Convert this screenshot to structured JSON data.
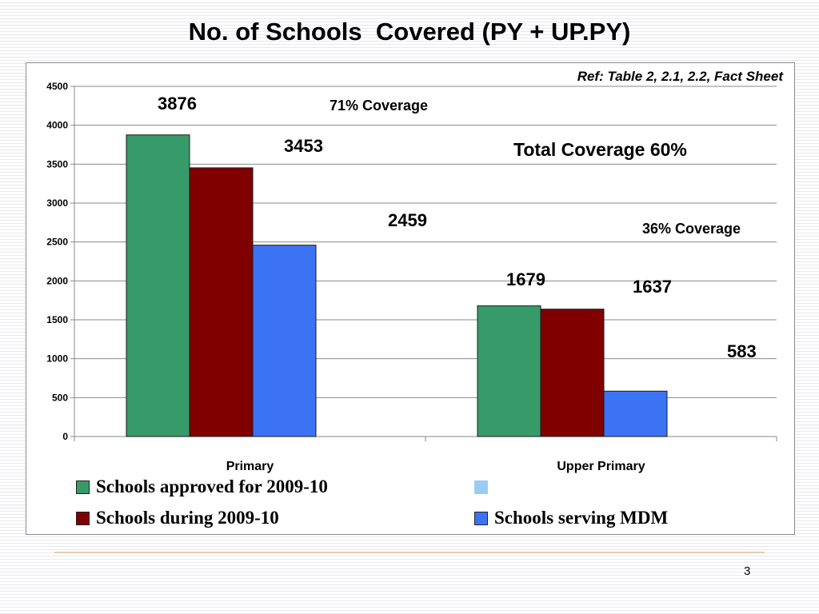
{
  "slide": {
    "title": "No. of Schools  Covered (PY + UP.PY)",
    "page_number": "3"
  },
  "chart_data": {
    "type": "bar",
    "categories": [
      "Primary",
      "Upper Primary"
    ],
    "series": [
      {
        "name": "Schools approved for 2009-10",
        "values": [
          3876,
          1679
        ],
        "color": "#379b69"
      },
      {
        "name": "Schools during 2009-10",
        "values": [
          3453,
          1637
        ],
        "color": "#800000"
      },
      {
        "name": "Schools serving MDM",
        "values": [
          2459,
          583
        ],
        "color": "#3c73f5"
      }
    ],
    "data_labels": [
      [
        "3876",
        "3453",
        "2459"
      ],
      [
        "1679",
        "1637",
        "583"
      ]
    ],
    "ylim": [
      0,
      4500
    ],
    "yticks": [
      0,
      500,
      1000,
      1500,
      2000,
      2500,
      3000,
      3500,
      4000,
      4500
    ],
    "ytick_labels": [
      "0",
      "500",
      "1000",
      "1500",
      "2000",
      "2500",
      "3000",
      "3500",
      "4000",
      "4500"
    ],
    "grid": true,
    "legend": {
      "position": "bottom",
      "items": [
        {
          "label": "Schools approved for 2009-10",
          "color": "#379b69"
        },
        {
          "label": "",
          "color": "#99ccf5"
        },
        {
          "label": "Schools during 2009-10",
          "color": "#800000"
        },
        {
          "label": "Schools serving MDM",
          "color": "#3c73f5"
        }
      ]
    },
    "annotations": {
      "reference": "Ref: Table 2, 2.1, 2.2, Fact Sheet",
      "primary_coverage": "71% Coverage",
      "total_coverage": "Total  Coverage 60%",
      "upper_primary_coverage": "36% Coverage"
    }
  }
}
